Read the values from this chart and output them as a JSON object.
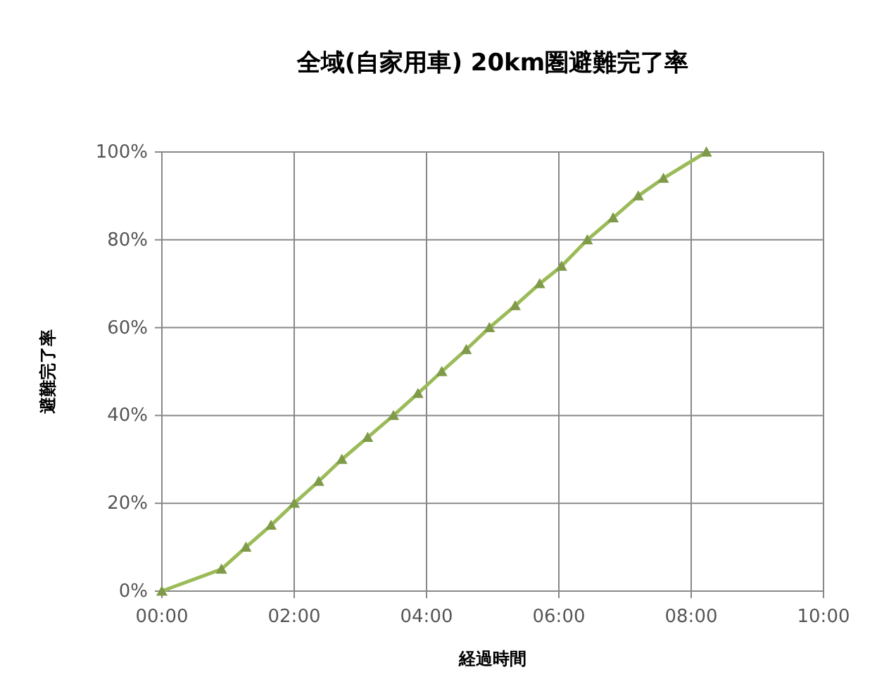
{
  "chart_data": {
    "type": "line",
    "title": "全域(自家用車) 20km圏避難完了率",
    "xlabel": "経過時間",
    "ylabel": "避難完了率",
    "x": [
      0,
      0.9,
      1.27,
      1.65,
      2.0,
      2.37,
      2.72,
      3.11,
      3.5,
      3.87,
      4.23,
      4.6,
      4.95,
      5.34,
      5.71,
      6.04,
      6.43,
      6.82,
      7.2,
      7.58,
      8.23
    ],
    "series": [
      {
        "color": "#9bbb59",
        "values": [
          0,
          5,
          10,
          15,
          20,
          25,
          30,
          35,
          40,
          45,
          50,
          55,
          60,
          65,
          70,
          74,
          80,
          85,
          90,
          94,
          100
        ]
      }
    ],
    "xlim": [
      0,
      10
    ],
    "xticks": [
      {
        "value": 0,
        "label": "00:00"
      },
      {
        "value": 2,
        "label": "02:00"
      },
      {
        "value": 4,
        "label": "04:00"
      },
      {
        "value": 6,
        "label": "06:00"
      },
      {
        "value": 8,
        "label": "08:00"
      },
      {
        "value": 10,
        "label": "10:00"
      }
    ],
    "ylim": [
      0,
      100
    ],
    "yticks": [
      {
        "value": 0,
        "label": "0%"
      },
      {
        "value": 20,
        "label": "20%"
      },
      {
        "value": 40,
        "label": "40%"
      },
      {
        "value": 60,
        "label": "60%"
      },
      {
        "value": 80,
        "label": "80%"
      },
      {
        "value": 100,
        "label": "100%"
      }
    ],
    "grid": true,
    "marker": "triangle",
    "line_style": "solid"
  }
}
